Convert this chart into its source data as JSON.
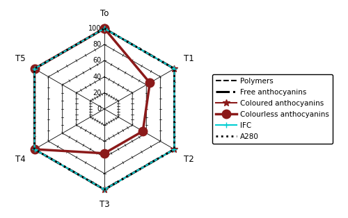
{
  "categories": [
    "To",
    "T1",
    "T2",
    "T3",
    "T4",
    "T5"
  ],
  "series": {
    "Polymers": {
      "values": [
        100,
        100,
        100,
        100,
        100,
        100
      ],
      "color": "#000000",
      "linestyle": "--",
      "linewidth": 1.5,
      "marker": null,
      "markersize": 0,
      "dash": [
        6,
        3
      ]
    },
    "Free anthocyanins": {
      "values": [
        100,
        100,
        100,
        100,
        100,
        100
      ],
      "color": "#000000",
      "linestyle": "-.",
      "linewidth": 2.2,
      "marker": null,
      "markersize": 0,
      "dash": null
    },
    "Coloured anthocyanins": {
      "values": [
        100,
        100,
        100,
        100,
        100,
        100
      ],
      "color": "#8B1A1A",
      "linestyle": "-",
      "linewidth": 1.5,
      "marker": "*",
      "markersize": 7,
      "dash": null
    },
    "Colourless anthocyanins": {
      "values": [
        100,
        65,
        55,
        55,
        100,
        100
      ],
      "color": "#8B1A1A",
      "linestyle": "-",
      "linewidth": 2.5,
      "marker": "o",
      "markersize": 9,
      "dash": null
    },
    "IFC": {
      "values": [
        100,
        100,
        100,
        100,
        100,
        100
      ],
      "color": "#00CED1",
      "linestyle": "-",
      "linewidth": 1.5,
      "marker": "+",
      "markersize": 6,
      "dash": null
    },
    "A280": {
      "values": [
        100,
        100,
        100,
        100,
        100,
        100
      ],
      "color": "#000000",
      "linestyle": ":",
      "linewidth": 2.0,
      "marker": null,
      "markersize": 0,
      "dash": null
    }
  },
  "r_max": 100,
  "r_ticks": [
    0,
    20,
    40,
    60,
    80,
    100
  ],
  "r_tick_labels": [
    "0",
    "20",
    "40",
    "60",
    "80",
    "100"
  ],
  "background_color": "#ffffff",
  "legend_fontsize": 7.5,
  "tick_fontsize": 7,
  "label_fontsize": 8.5,
  "fig_width": 5.0,
  "fig_height": 3.14,
  "dpi": 100
}
